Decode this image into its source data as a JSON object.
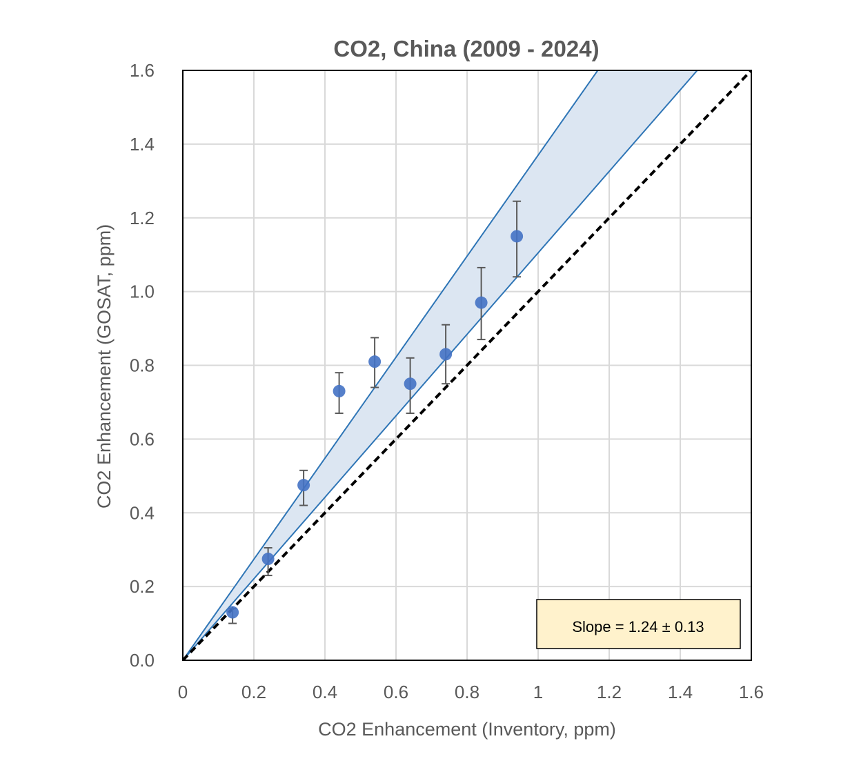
{
  "chart_data": {
    "type": "scatter",
    "title": "CO2, China (2009 - 2024)",
    "xlabel": "CO2 Enhancement (Inventory, ppm)",
    "ylabel": "CO2 Enhancement (GOSAT, ppm)",
    "xlim": [
      0,
      1.6
    ],
    "ylim": [
      0,
      1.6
    ],
    "x_ticks": [
      "0",
      "0.2",
      "0.4",
      "0.6",
      "0.8",
      "1",
      "1.2",
      "1.4",
      "1.6"
    ],
    "y_ticks": [
      "0.0",
      "0.2",
      "0.4",
      "0.6",
      "0.8",
      "1.0",
      "1.2",
      "1.4",
      "1.6"
    ],
    "x_tick_values": [
      0,
      0.2,
      0.4,
      0.6,
      0.8,
      1.0,
      1.2,
      1.4,
      1.6
    ],
    "y_tick_values": [
      0,
      0.2,
      0.4,
      0.6,
      0.8,
      1.0,
      1.2,
      1.4,
      1.6
    ],
    "grid": true,
    "points": [
      {
        "x": 0.14,
        "y": 0.13,
        "err_low": 0.1,
        "err_high": 0.14
      },
      {
        "x": 0.24,
        "y": 0.275,
        "err_low": 0.23,
        "err_high": 0.305
      },
      {
        "x": 0.34,
        "y": 0.475,
        "err_low": 0.42,
        "err_high": 0.515
      },
      {
        "x": 0.44,
        "y": 0.73,
        "err_low": 0.67,
        "err_high": 0.78
      },
      {
        "x": 0.54,
        "y": 0.81,
        "err_low": 0.74,
        "err_high": 0.875
      },
      {
        "x": 0.64,
        "y": 0.75,
        "err_low": 0.67,
        "err_high": 0.82
      },
      {
        "x": 0.74,
        "y": 0.83,
        "err_low": 0.75,
        "err_high": 0.91
      },
      {
        "x": 0.84,
        "y": 0.97,
        "err_low": 0.87,
        "err_high": 1.065
      },
      {
        "x": 0.94,
        "y": 1.15,
        "err_low": 1.04,
        "err_high": 1.245
      }
    ],
    "band": {
      "upper_slope": 1.37,
      "lower_slope": 1.105
    },
    "reference_line": {
      "slope": 1,
      "style": "dashed"
    },
    "annotation": "Slope = 1.24 ± 0.13",
    "colors": {
      "points": "#4472C4",
      "band_fill": "#DCE6F2",
      "band_line": "#2E75B6",
      "errorbar": "#595959",
      "grid": "#D9D9D9",
      "annotation_bg": "#FFF2CC"
    }
  }
}
